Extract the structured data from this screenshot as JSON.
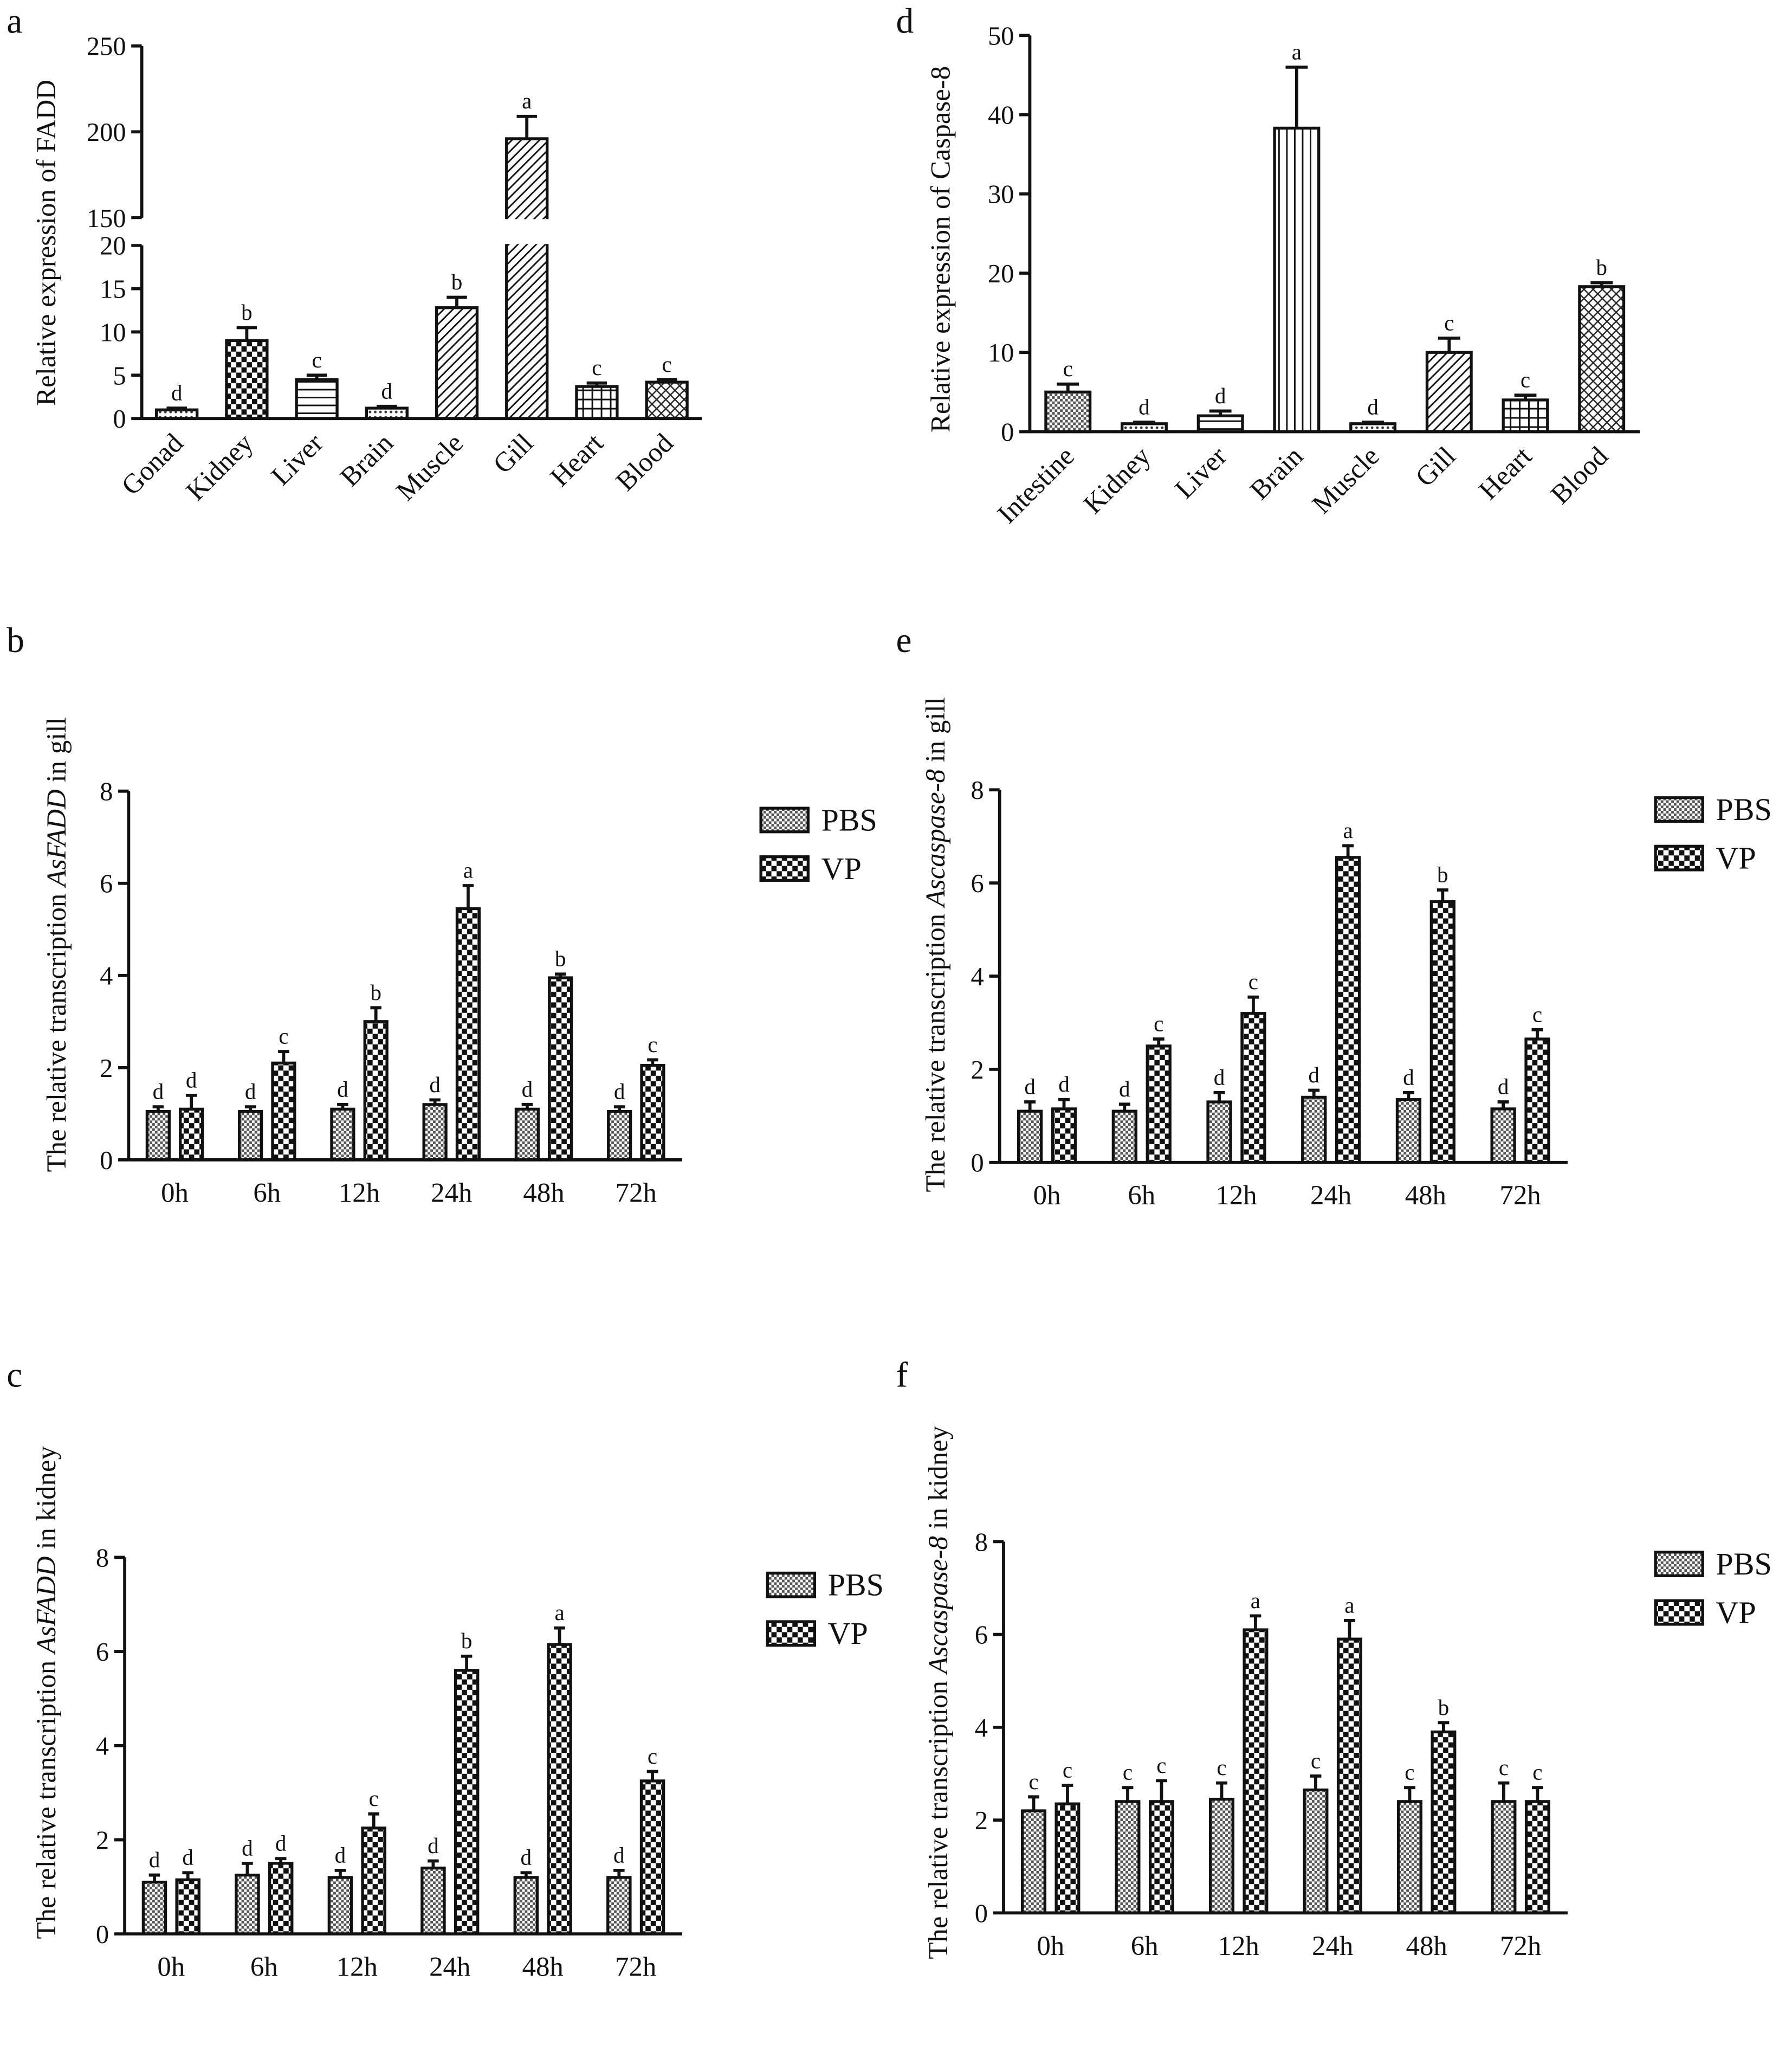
{
  "chart_data": [
    {
      "type": "bar",
      "panel": "a",
      "ylabel": [
        {
          "text": "Relative expression of FADD",
          "italic": false
        }
      ],
      "categories": [
        "Gonad",
        "Kidney",
        "Liver",
        "Brain",
        "Muscle",
        "Gill",
        "Heart",
        "Blood"
      ],
      "values": [
        1.0,
        9.0,
        4.5,
        1.2,
        12.8,
        196,
        3.7,
        4.2
      ],
      "errors": [
        0.2,
        1.5,
        0.5,
        0.2,
        1.2,
        13,
        0.4,
        0.3
      ],
      "labels": [
        "d",
        "b",
        "c",
        "d",
        "b",
        "a",
        "c",
        "c"
      ],
      "patterns": [
        "dots",
        "checker-large",
        "hlines",
        "dots",
        "diag",
        "diag",
        "grid",
        "crosshatch"
      ],
      "ylim": [
        0,
        250
      ],
      "y_break": [
        20,
        150
      ],
      "yticks": [
        0,
        5,
        10,
        15,
        20,
        150,
        200,
        250
      ]
    },
    {
      "type": "bar",
      "panel": "d",
      "ylabel": [
        {
          "text": "Relative expression of Caspase-8",
          "italic": false
        }
      ],
      "categories": [
        "Intestine",
        "Kidney",
        "Liver",
        "Brain",
        "Muscle",
        "Gill",
        "Heart",
        "Blood"
      ],
      "values": [
        5.0,
        1.0,
        2.0,
        38.3,
        1.0,
        10.0,
        4.0,
        18.3
      ],
      "errors": [
        1.0,
        0.2,
        0.6,
        7.7,
        0.2,
        1.8,
        0.6,
        0.5
      ],
      "labels": [
        "c",
        "d",
        "d",
        "a",
        "d",
        "c",
        "c",
        "b"
      ],
      "patterns": [
        "checker-small",
        "dots",
        "hlines",
        "vlines",
        "dots",
        "diag",
        "grid",
        "crosshatch"
      ],
      "ylim": [
        0,
        50
      ],
      "yticks": [
        0,
        10,
        20,
        30,
        40,
        50
      ]
    },
    {
      "type": "bar",
      "panel": "b",
      "ylabel": [
        {
          "text": "The relative transcription ",
          "italic": false
        },
        {
          "text": "AsFADD",
          "italic": true
        },
        {
          "text": " in gill",
          "italic": false
        }
      ],
      "categories": [
        "0h",
        "6h",
        "12h",
        "24h",
        "48h",
        "72h"
      ],
      "legend": "right",
      "series": [
        {
          "name": "PBS",
          "pattern": "checker-small",
          "values": [
            1.05,
            1.05,
            1.1,
            1.2,
            1.1,
            1.05
          ],
          "errors": [
            0.1,
            0.1,
            0.1,
            0.1,
            0.1,
            0.1
          ],
          "labels": [
            "d",
            "d",
            "d",
            "d",
            "d",
            "d"
          ]
        },
        {
          "name": "VP",
          "pattern": "checker-large",
          "values": [
            1.1,
            2.1,
            3.0,
            5.45,
            3.95,
            2.05
          ],
          "errors": [
            0.3,
            0.25,
            0.3,
            0.5,
            0.08,
            0.12
          ],
          "labels": [
            "d",
            "c",
            "b",
            "a",
            "b",
            "c"
          ]
        }
      ],
      "ylim": [
        0,
        8
      ],
      "yticks": [
        0,
        2,
        4,
        6,
        8
      ]
    },
    {
      "type": "bar",
      "panel": "e",
      "ylabel": [
        {
          "text": "The relative transcription ",
          "italic": false
        },
        {
          "text": "Ascaspase-8",
          "italic": true
        },
        {
          "text": " in gill",
          "italic": false
        }
      ],
      "categories": [
        "0h",
        "6h",
        "12h",
        "24h",
        "48h",
        "72h"
      ],
      "legend": "right",
      "series": [
        {
          "name": "PBS",
          "pattern": "checker-small",
          "values": [
            1.1,
            1.1,
            1.3,
            1.4,
            1.35,
            1.15
          ],
          "errors": [
            0.2,
            0.15,
            0.2,
            0.15,
            0.15,
            0.15
          ],
          "labels": [
            "d",
            "d",
            "d",
            "d",
            "d",
            "d"
          ]
        },
        {
          "name": "VP",
          "pattern": "checker-large",
          "values": [
            1.15,
            2.5,
            3.2,
            6.55,
            5.6,
            2.65
          ],
          "errors": [
            0.2,
            0.15,
            0.35,
            0.25,
            0.25,
            0.2
          ],
          "labels": [
            "d",
            "c",
            "c",
            "a",
            "b",
            "c"
          ]
        }
      ],
      "ylim": [
        0,
        8
      ],
      "yticks": [
        0,
        2,
        4,
        6,
        8
      ]
    },
    {
      "type": "bar",
      "panel": "c",
      "ylabel": [
        {
          "text": "The relative transcription ",
          "italic": false
        },
        {
          "text": "AsFADD",
          "italic": true
        },
        {
          "text": " in kidney",
          "italic": false
        }
      ],
      "categories": [
        "0h",
        "6h",
        "12h",
        "24h",
        "48h",
        "72h"
      ],
      "legend": "right",
      "series": [
        {
          "name": "PBS",
          "pattern": "checker-small",
          "values": [
            1.1,
            1.25,
            1.2,
            1.4,
            1.2,
            1.2
          ],
          "errors": [
            0.15,
            0.25,
            0.15,
            0.15,
            0.1,
            0.15
          ],
          "labels": [
            "d",
            "d",
            "d",
            "d",
            "d",
            "d"
          ]
        },
        {
          "name": "VP",
          "pattern": "checker-large",
          "values": [
            1.15,
            1.5,
            2.25,
            5.6,
            6.15,
            3.25
          ],
          "errors": [
            0.15,
            0.1,
            0.3,
            0.3,
            0.35,
            0.2
          ],
          "labels": [
            "d",
            "d",
            "c",
            "b",
            "a",
            "c"
          ]
        }
      ],
      "ylim": [
        0,
        8
      ],
      "yticks": [
        0,
        2,
        4,
        6,
        8
      ]
    },
    {
      "type": "bar",
      "panel": "f",
      "ylabel": [
        {
          "text": "The relative transcription ",
          "italic": false
        },
        {
          "text": "Ascaspase-8",
          "italic": true
        },
        {
          "text": " in kidney",
          "italic": false
        }
      ],
      "categories": [
        "0h",
        "6h",
        "12h",
        "24h",
        "48h",
        "72h"
      ],
      "legend": "right",
      "series": [
        {
          "name": "PBS",
          "pattern": "checker-small",
          "values": [
            2.2,
            2.4,
            2.45,
            2.65,
            2.4,
            2.4
          ],
          "errors": [
            0.3,
            0.3,
            0.35,
            0.3,
            0.3,
            0.4
          ],
          "labels": [
            "c",
            "c",
            "c",
            "c",
            "c",
            "c"
          ]
        },
        {
          "name": "VP",
          "pattern": "checker-large",
          "values": [
            2.35,
            2.4,
            6.1,
            5.9,
            3.9,
            2.4
          ],
          "errors": [
            0.4,
            0.45,
            0.3,
            0.4,
            0.2,
            0.3
          ],
          "labels": [
            "c",
            "c",
            "a",
            "a",
            "b",
            "c"
          ]
        }
      ],
      "ylim": [
        0,
        8
      ],
      "yticks": [
        0,
        2,
        4,
        6,
        8
      ]
    }
  ]
}
